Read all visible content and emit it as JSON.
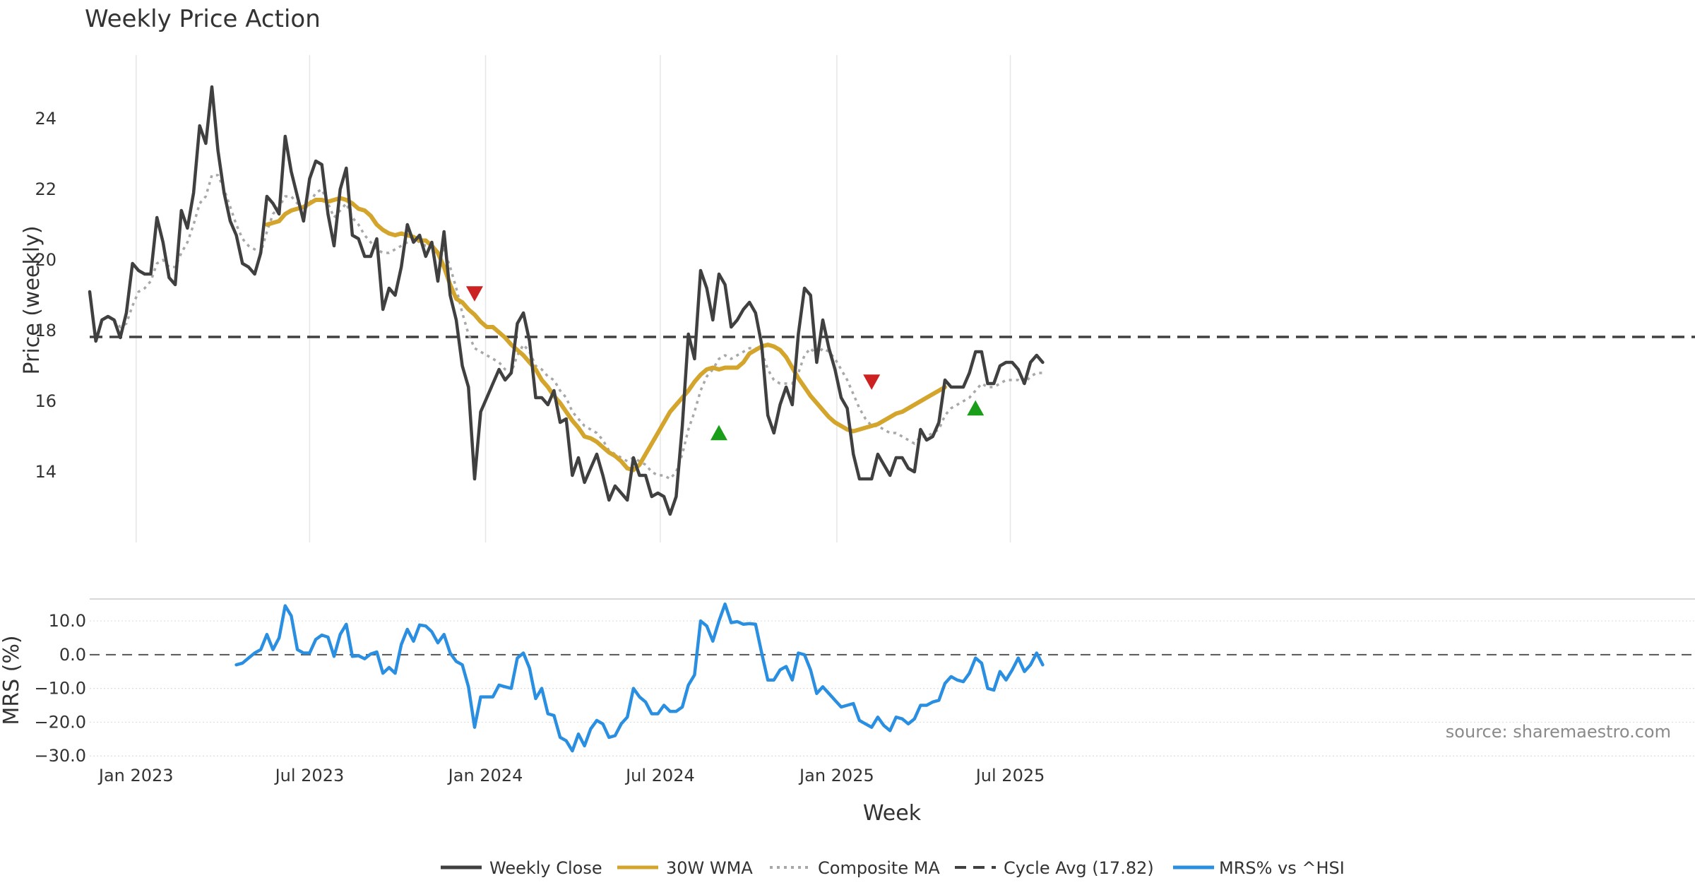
{
  "chart_data": {
    "type": "line",
    "title": "Weekly Price Action",
    "xlabel": "Week",
    "source_note": "source: sharemaestro.com",
    "x_ticks": [
      "Jan 2023",
      "Jul 2023",
      "Jan 2024",
      "Jul 2024",
      "Jan 2025",
      "Jul 2025"
    ],
    "price_panel": {
      "ylabel": "Price (weekly)",
      "ylim": [
        12.0,
        25.8
      ],
      "y_ticks": [
        "14",
        "16",
        "18",
        "20",
        "22",
        "24"
      ],
      "cycle_avg": 17.82,
      "series": [
        {
          "name": "Weekly Close",
          "color": "#404040",
          "style": "solid",
          "values": [
            19.1,
            17.7,
            18.3,
            18.4,
            18.3,
            17.8,
            18.5,
            19.9,
            19.7,
            19.6,
            19.6,
            21.2,
            20.5,
            19.5,
            19.3,
            21.4,
            20.9,
            21.9,
            23.8,
            23.3,
            24.9,
            23.1,
            21.9,
            21.1,
            20.7,
            19.9,
            19.8,
            19.6,
            20.2,
            21.8,
            21.6,
            21.3,
            23.5,
            22.5,
            21.8,
            21.1,
            22.3,
            22.8,
            22.7,
            21.3,
            20.4,
            22.0,
            22.6,
            20.7,
            20.6,
            20.1,
            20.1,
            20.6,
            18.6,
            19.2,
            19.0,
            19.8,
            21.0,
            20.5,
            20.7,
            20.1,
            20.5,
            19.4,
            20.8,
            19.0,
            18.3,
            17.0,
            16.4,
            13.8,
            15.7,
            16.1,
            16.5,
            16.9,
            16.6,
            16.8,
            18.2,
            18.5,
            17.7,
            16.1,
            16.1,
            15.9,
            16.3,
            15.4,
            15.5,
            13.9,
            14.4,
            13.7,
            14.1,
            14.5,
            13.9,
            13.2,
            13.6,
            13.4,
            13.2,
            14.4,
            13.9,
            13.9,
            13.3,
            13.4,
            13.3,
            12.8,
            13.3,
            15.3,
            17.9,
            17.2,
            19.7,
            19.2,
            18.3,
            19.6,
            19.3,
            18.1,
            18.3,
            18.6,
            18.8,
            18.5,
            17.6,
            15.6,
            15.1,
            15.9,
            16.4,
            15.9,
            17.9,
            19.2,
            19.0,
            17.1,
            18.3,
            17.5,
            16.9,
            16.1,
            15.8,
            14.5,
            13.8,
            13.8,
            13.8,
            14.5,
            14.2,
            13.9,
            14.4,
            14.4,
            14.1,
            14.0,
            15.2,
            14.9,
            15.0,
            15.4,
            16.6,
            16.4,
            16.4,
            16.4,
            16.8,
            17.4,
            17.4,
            16.5,
            16.5,
            17.0,
            17.1,
            17.1,
            16.9,
            16.5,
            17.1,
            17.3,
            17.1
          ]
        },
        {
          "name": "30W WMA",
          "color": "#d4a52c",
          "style": "solid",
          "start": 29,
          "values": [
            21.0,
            21.05,
            21.1,
            21.3,
            21.4,
            21.45,
            21.5,
            21.6,
            21.7,
            21.7,
            21.65,
            21.7,
            21.75,
            21.7,
            21.6,
            21.45,
            21.4,
            21.25,
            21.0,
            20.85,
            20.75,
            20.7,
            20.75,
            20.7,
            20.65,
            20.55,
            20.55,
            20.4,
            20.2,
            19.8,
            19.3,
            18.9,
            18.8,
            18.6,
            18.45,
            18.25,
            18.1,
            18.1,
            17.95,
            17.8,
            17.6,
            17.45,
            17.3,
            17.1,
            16.9,
            16.6,
            16.4,
            16.15,
            15.95,
            15.7,
            15.45,
            15.25,
            15.0,
            14.95,
            14.85,
            14.7,
            14.55,
            14.45,
            14.3,
            14.1,
            14.05,
            14.2,
            14.5,
            14.8,
            15.1,
            15.4,
            15.7,
            15.9,
            16.1,
            16.3,
            16.55,
            16.75,
            16.9,
            16.95,
            16.9,
            16.95,
            16.95,
            16.95,
            17.1,
            17.35,
            17.45,
            17.55,
            17.6,
            17.55,
            17.45,
            17.25,
            16.95,
            16.65,
            16.4,
            16.15,
            15.95,
            15.75,
            15.55,
            15.4,
            15.3,
            15.2,
            15.15,
            15.2,
            15.25,
            15.3,
            15.35,
            15.45,
            15.55,
            15.65,
            15.7,
            15.8,
            15.9,
            16.0,
            16.1,
            16.2,
            16.3,
            16.4
          ]
        },
        {
          "name": "Composite MA",
          "color": "#a8a8a8",
          "style": "dotted",
          "values": [
            null,
            null,
            null,
            null,
            18.3,
            18.1,
            18.2,
            18.7,
            19.1,
            19.2,
            19.4,
            19.9,
            20.0,
            19.8,
            19.8,
            20.2,
            20.5,
            21.0,
            21.6,
            21.8,
            22.4,
            22.4,
            22.0,
            21.5,
            21.0,
            20.6,
            20.4,
            20.3,
            20.2,
            20.8,
            21.3,
            21.5,
            21.8,
            21.8,
            21.6,
            21.4,
            21.6,
            21.9,
            22.0,
            21.6,
            21.2,
            21.4,
            21.6,
            21.2,
            21.0,
            20.7,
            20.5,
            20.3,
            20.2,
            20.2,
            20.3,
            20.4,
            20.5,
            20.6,
            20.5,
            20.4,
            20.4,
            20.1,
            20.3,
            19.8,
            19.2,
            18.5,
            17.9,
            17.5,
            17.4,
            17.3,
            17.2,
            17.1,
            16.9,
            16.8,
            17.3,
            17.6,
            17.4,
            17.0,
            16.9,
            16.7,
            16.6,
            16.3,
            16.1,
            15.7,
            15.5,
            15.3,
            15.2,
            15.1,
            14.9,
            14.6,
            14.5,
            14.4,
            14.3,
            14.4,
            14.3,
            14.2,
            14.0,
            13.9,
            13.9,
            13.8,
            14.0,
            14.5,
            15.2,
            15.7,
            16.3,
            16.7,
            16.9,
            17.2,
            17.3,
            17.2,
            17.3,
            17.4,
            17.5,
            17.5,
            17.4,
            16.9,
            16.6,
            16.5,
            16.5,
            16.5,
            16.8,
            17.3,
            17.5,
            17.3,
            17.5,
            17.4,
            17.2,
            16.9,
            16.6,
            16.2,
            15.8,
            15.5,
            15.3,
            15.3,
            15.2,
            15.1,
            15.1,
            15.0,
            14.9,
            14.8,
            15.0,
            15.0,
            15.1,
            15.2,
            15.6,
            15.8,
            15.9,
            16.0,
            16.1,
            16.3,
            16.5,
            16.4,
            16.4,
            16.5,
            16.6,
            16.6,
            16.6,
            16.5,
            16.7,
            16.8,
            16.8
          ]
        }
      ],
      "signals": [
        {
          "type": "sell",
          "week": 63,
          "price": 19.05,
          "color": "#cc2222"
        },
        {
          "type": "buy",
          "week": 103,
          "price": 15.1,
          "color": "#1a9e1a"
        },
        {
          "type": "sell",
          "week": 128,
          "price": 16.55,
          "color": "#cc2222"
        },
        {
          "type": "buy",
          "week": 145,
          "price": 15.8,
          "color": "#1a9e1a"
        }
      ]
    },
    "mrs_panel": {
      "ylabel": "MRS (%)",
      "ylim": [
        -31,
        16.5
      ],
      "y_ticks": [
        "10.0",
        "0.0",
        "−10.0",
        "−20.0",
        "−30.0"
      ],
      "series": [
        {
          "name": "MRS% vs ^HSI",
          "color": "#2a8fe0",
          "start": 24,
          "values": [
            -3,
            -2.5,
            -1,
            0.5,
            1.5,
            6,
            1.5,
            5,
            14.5,
            11.5,
            1.5,
            0.5,
            0.5,
            4.5,
            5.8,
            5.2,
            -0.5,
            6,
            9,
            -0.5,
            -0.3,
            -1.2,
            0.2,
            0.8,
            -5.5,
            -3.8,
            -5.5,
            3,
            7.5,
            4,
            8.8,
            8.5,
            6.8,
            3.5,
            6,
            0.5,
            -2,
            -3,
            -9.5,
            -21.5,
            -12.5,
            -12.5,
            -12.5,
            -9,
            -9.5,
            -10,
            -1,
            0.5,
            -4,
            -13,
            -10,
            -17.5,
            -18,
            -24.5,
            -25.5,
            -28.5,
            -23.5,
            -27,
            -22,
            -19.5,
            -20.5,
            -24.5,
            -24,
            -20.5,
            -18.5,
            -10,
            -12.5,
            -14,
            -17.5,
            -17.5,
            -15,
            -16.8,
            -16.8,
            -15.5,
            -9,
            -6,
            10,
            8.5,
            4,
            10,
            15,
            9.5,
            9.8,
            9,
            9.2,
            9,
            0.5,
            -7.5,
            -7.5,
            -4.5,
            -3.5,
            -7.5,
            0.5,
            0,
            -4.5,
            -11.5,
            -9.5,
            -11.5,
            -13.5,
            -15.5,
            -15,
            -14.5,
            -19.5,
            -20.5,
            -21.5,
            -18.5,
            -21,
            -22.5,
            -18.5,
            -19,
            -20.5,
            -19,
            -15,
            -15,
            -14,
            -13.5,
            -8.5,
            -6.5,
            -7.5,
            -8,
            -5.5,
            -1,
            -2.5,
            -10,
            -10.5,
            -5,
            -7.5,
            -4.5,
            -1,
            -5,
            -3,
            0.5,
            -3
          ]
        }
      ]
    },
    "legend": [
      {
        "label": "Weekly Close",
        "color": "#404040",
        "style": "solid"
      },
      {
        "label": "30W WMA",
        "color": "#d4a52c",
        "style": "solid"
      },
      {
        "label": "Composite MA",
        "color": "#a8a8a8",
        "style": "dotted"
      },
      {
        "label": "Cycle Avg (17.82)",
        "color": "#404040",
        "style": "dashed"
      },
      {
        "label": "MRS% vs ^HSI",
        "color": "#2a8fe0",
        "style": "solid"
      }
    ],
    "legend_position": "bottom-center"
  }
}
